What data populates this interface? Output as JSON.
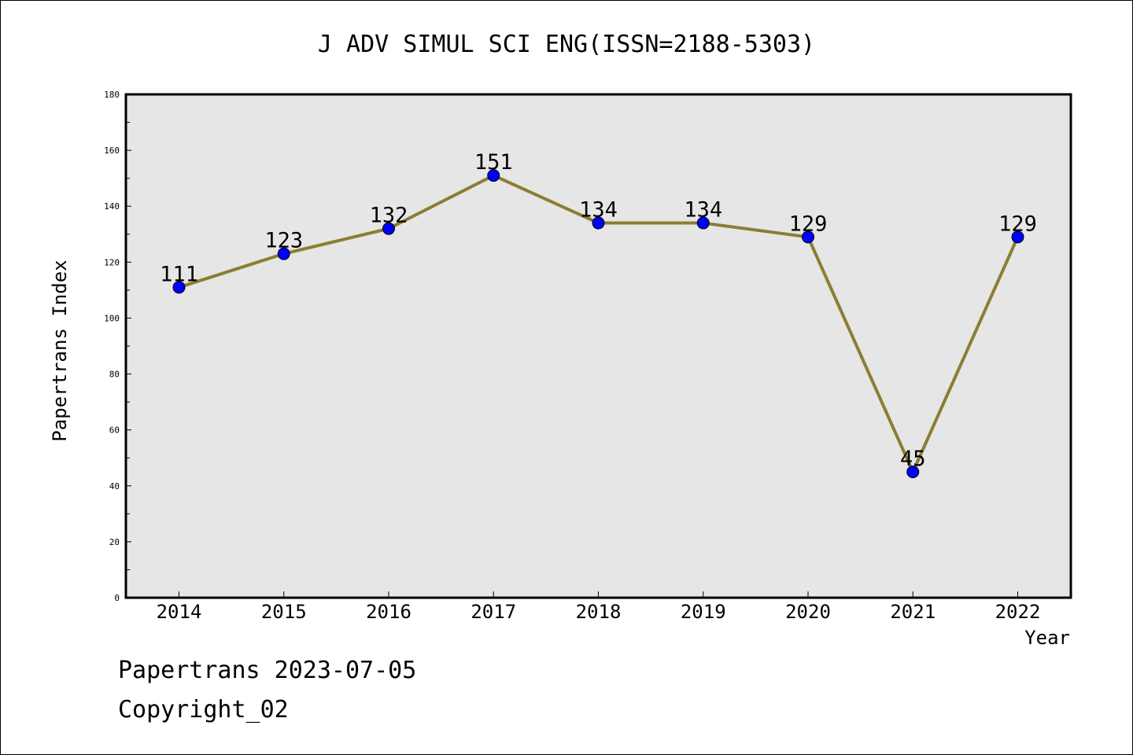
{
  "chart_data": {
    "type": "line",
    "title": "J ADV SIMUL SCI ENG(ISSN=2188-5303)",
    "xlabel": "Year",
    "ylabel": "Papertrans Index",
    "categories": [
      "2014",
      "2015",
      "2016",
      "2017",
      "2018",
      "2019",
      "2020",
      "2021",
      "2022"
    ],
    "series": [
      {
        "values": [
          111,
          123,
          132,
          151,
          134,
          134,
          129,
          45,
          129
        ]
      }
    ],
    "data_labels": [
      "111",
      "123",
      "132",
      "151",
      "134",
      "134",
      "129",
      "45",
      "129"
    ],
    "ylim": [
      0,
      180
    ],
    "yticks": [
      "0",
      "20",
      "40",
      "60",
      "80",
      "100",
      "120",
      "140",
      "160",
      "180"
    ],
    "grid": false,
    "colors": {
      "line": "#8b7d33",
      "marker": "#0000ff",
      "plot_bg": "#e6e6e6"
    }
  },
  "footer": {
    "line1": "Papertrans 2023-07-05",
    "line2": "Copyright_02"
  }
}
